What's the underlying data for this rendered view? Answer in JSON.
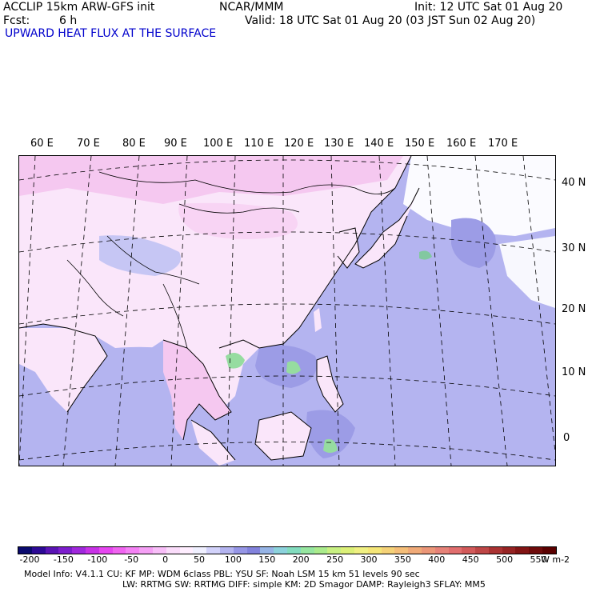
{
  "header": {
    "model_line": "ACCLIP 15km ARW-GFS init",
    "center": "NCAR/MMM",
    "init": "Init: 12 UTC Sat 01 Aug 20",
    "fcst_label": "Fcst:",
    "fcst_value": "6 h",
    "valid": "Valid: 18 UTC Sat 01 Aug 20 (03 JST Sun 02 Aug 20)",
    "field": "UPWARD HEAT FLUX AT THE SURFACE"
  },
  "map": {
    "projection": "lambert-conformal",
    "lon_labels": [
      "60 E",
      "70 E",
      "80 E",
      "90 E",
      "100 E",
      "110 E",
      "120 E",
      "130 E",
      "140 E",
      "150 E",
      "160 E",
      "170 E"
    ],
    "lat_labels": [
      "40 N",
      "30 N",
      "20 N",
      "10 N",
      "0"
    ],
    "colors": {
      "ocean": "#b4b4f0",
      "ocean_dark": "#9c9ce6",
      "land_pink": "#f5c8f0",
      "land_light": "#fae6fa",
      "green": "#96dca0",
      "coast": "#000000"
    }
  },
  "colorbar": {
    "labels": [
      "-200",
      "-150",
      "-100",
      "-50",
      "0",
      "50",
      "100",
      "150",
      "200",
      "250",
      "300",
      "350",
      "400",
      "450",
      "500",
      "550"
    ],
    "unit": "W m-2",
    "colors": [
      "#0a0a6e",
      "#2d0a96",
      "#5a14b4",
      "#7d1ecd",
      "#a028dc",
      "#c832e6",
      "#e646f0",
      "#f064f0",
      "#f582f5",
      "#f5a0f5",
      "#f8bef8",
      "#fadcfa",
      "#ffeeff",
      "#f0f0ff",
      "#d2d2fa",
      "#b4b4f0",
      "#9696e6",
      "#8282dc",
      "#96b4e6",
      "#8cd2dc",
      "#82dcbe",
      "#96e6a0",
      "#aaeb8c",
      "#c8f082",
      "#dcf078",
      "#f0f082",
      "#f5e678",
      "#f5d278",
      "#f5be78",
      "#f0aa78",
      "#eb9678",
      "#e68278",
      "#e16e6e",
      "#d25a5a",
      "#be4646",
      "#aa3232",
      "#962323",
      "#821414",
      "#6e0a0a",
      "#5a0000"
    ]
  },
  "footer": {
    "line1": "Model Info: V4.1.1     CU: KF       MP: WDM 6class  PBL: YSU       SF: Noah LSM    15 km   51 levels   90 sec",
    "line2": "LW: RRTMG    SW: RRTMG   DIFF: simple KM: 2D Smagor DAMP: Rayleigh3   SFLAY: MM5"
  }
}
